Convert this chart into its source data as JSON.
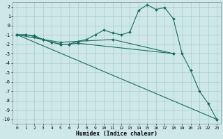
{
  "background_color": "#cde8e7",
  "grid_color": "#a8cccb",
  "line_color": "#1a6b62",
  "marker": "D",
  "marker_size": 2.0,
  "xlabel": "Humidex (Indice chaleur)",
  "xlim": [
    -0.5,
    23.5
  ],
  "ylim": [
    -10.5,
    2.5
  ],
  "xticks": [
    0,
    1,
    2,
    3,
    4,
    5,
    6,
    7,
    8,
    9,
    10,
    11,
    12,
    13,
    14,
    15,
    16,
    17,
    18,
    19,
    20,
    21,
    22,
    23
  ],
  "yticks": [
    2,
    1,
    0,
    -1,
    -2,
    -3,
    -4,
    -5,
    -6,
    -7,
    -8,
    -9,
    -10
  ],
  "curves": [
    {
      "x": [
        0,
        1,
        2,
        3,
        4,
        5,
        6,
        7,
        8,
        9,
        10,
        11,
        12,
        13,
        14,
        15,
        16,
        17,
        18,
        19,
        20,
        21,
        22,
        23
      ],
      "y": [
        -1,
        -1,
        -1.2,
        -1.5,
        -1.8,
        -2.0,
        -2.0,
        -1.7,
        -1.5,
        -1.0,
        -0.5,
        -0.8,
        -1.0,
        -0.7,
        1.6,
        2.2,
        1.7,
        1.9,
        0.7,
        -3.0,
        -4.8,
        -7.0,
        -8.3,
        -10.0
      ]
    },
    {
      "x": [
        0,
        1,
        2,
        3,
        5,
        7,
        11,
        18
      ],
      "y": [
        -1,
        -1.0,
        -1.1,
        -1.5,
        -1.8,
        -1.7,
        -1.5,
        -3.0
      ]
    },
    {
      "x": [
        0,
        3,
        4,
        5,
        6,
        7,
        18
      ],
      "y": [
        -1,
        -1.5,
        -1.8,
        -2.0,
        -2.0,
        -1.9,
        -3.0
      ]
    },
    {
      "x": [
        0,
        23
      ],
      "y": [
        -1,
        -10
      ]
    }
  ]
}
